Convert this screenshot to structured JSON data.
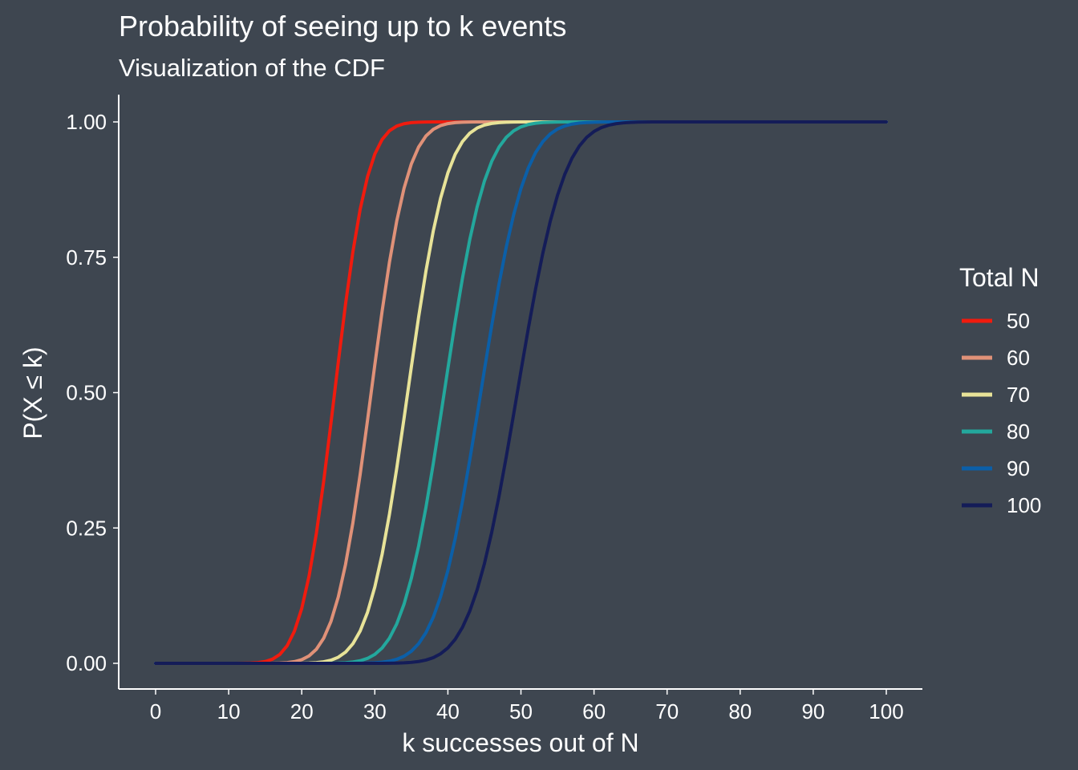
{
  "chart_data": {
    "type": "line",
    "title": "Probability of seeing up to k events",
    "subtitle": "Visualization of the CDF",
    "xlabel": "k successes out of N",
    "ylabel": "P(X ≤ k)",
    "xlim": [
      0,
      100
    ],
    "ylim": [
      0,
      1
    ],
    "x_ticks": [
      "0",
      "10",
      "20",
      "30",
      "40",
      "50",
      "60",
      "70",
      "80",
      "90",
      "100"
    ],
    "y_ticks": [
      "0.00",
      "0.25",
      "0.50",
      "0.75",
      "1.00"
    ],
    "legend": {
      "title": "Total N",
      "position": "right"
    },
    "distribution": "binomial",
    "p": 0.5,
    "series": [
      {
        "name": "50",
        "n": 50,
        "color": "#f01b0e"
      },
      {
        "name": "60",
        "n": 60,
        "color": "#e09178"
      },
      {
        "name": "70",
        "n": 70,
        "color": "#e8e398"
      },
      {
        "name": "80",
        "n": 80,
        "color": "#23a89d"
      },
      {
        "name": "90",
        "n": 90,
        "color": "#0b5fa8"
      },
      {
        "name": "100",
        "n": 100,
        "color": "#141c58"
      }
    ],
    "grid": false
  }
}
